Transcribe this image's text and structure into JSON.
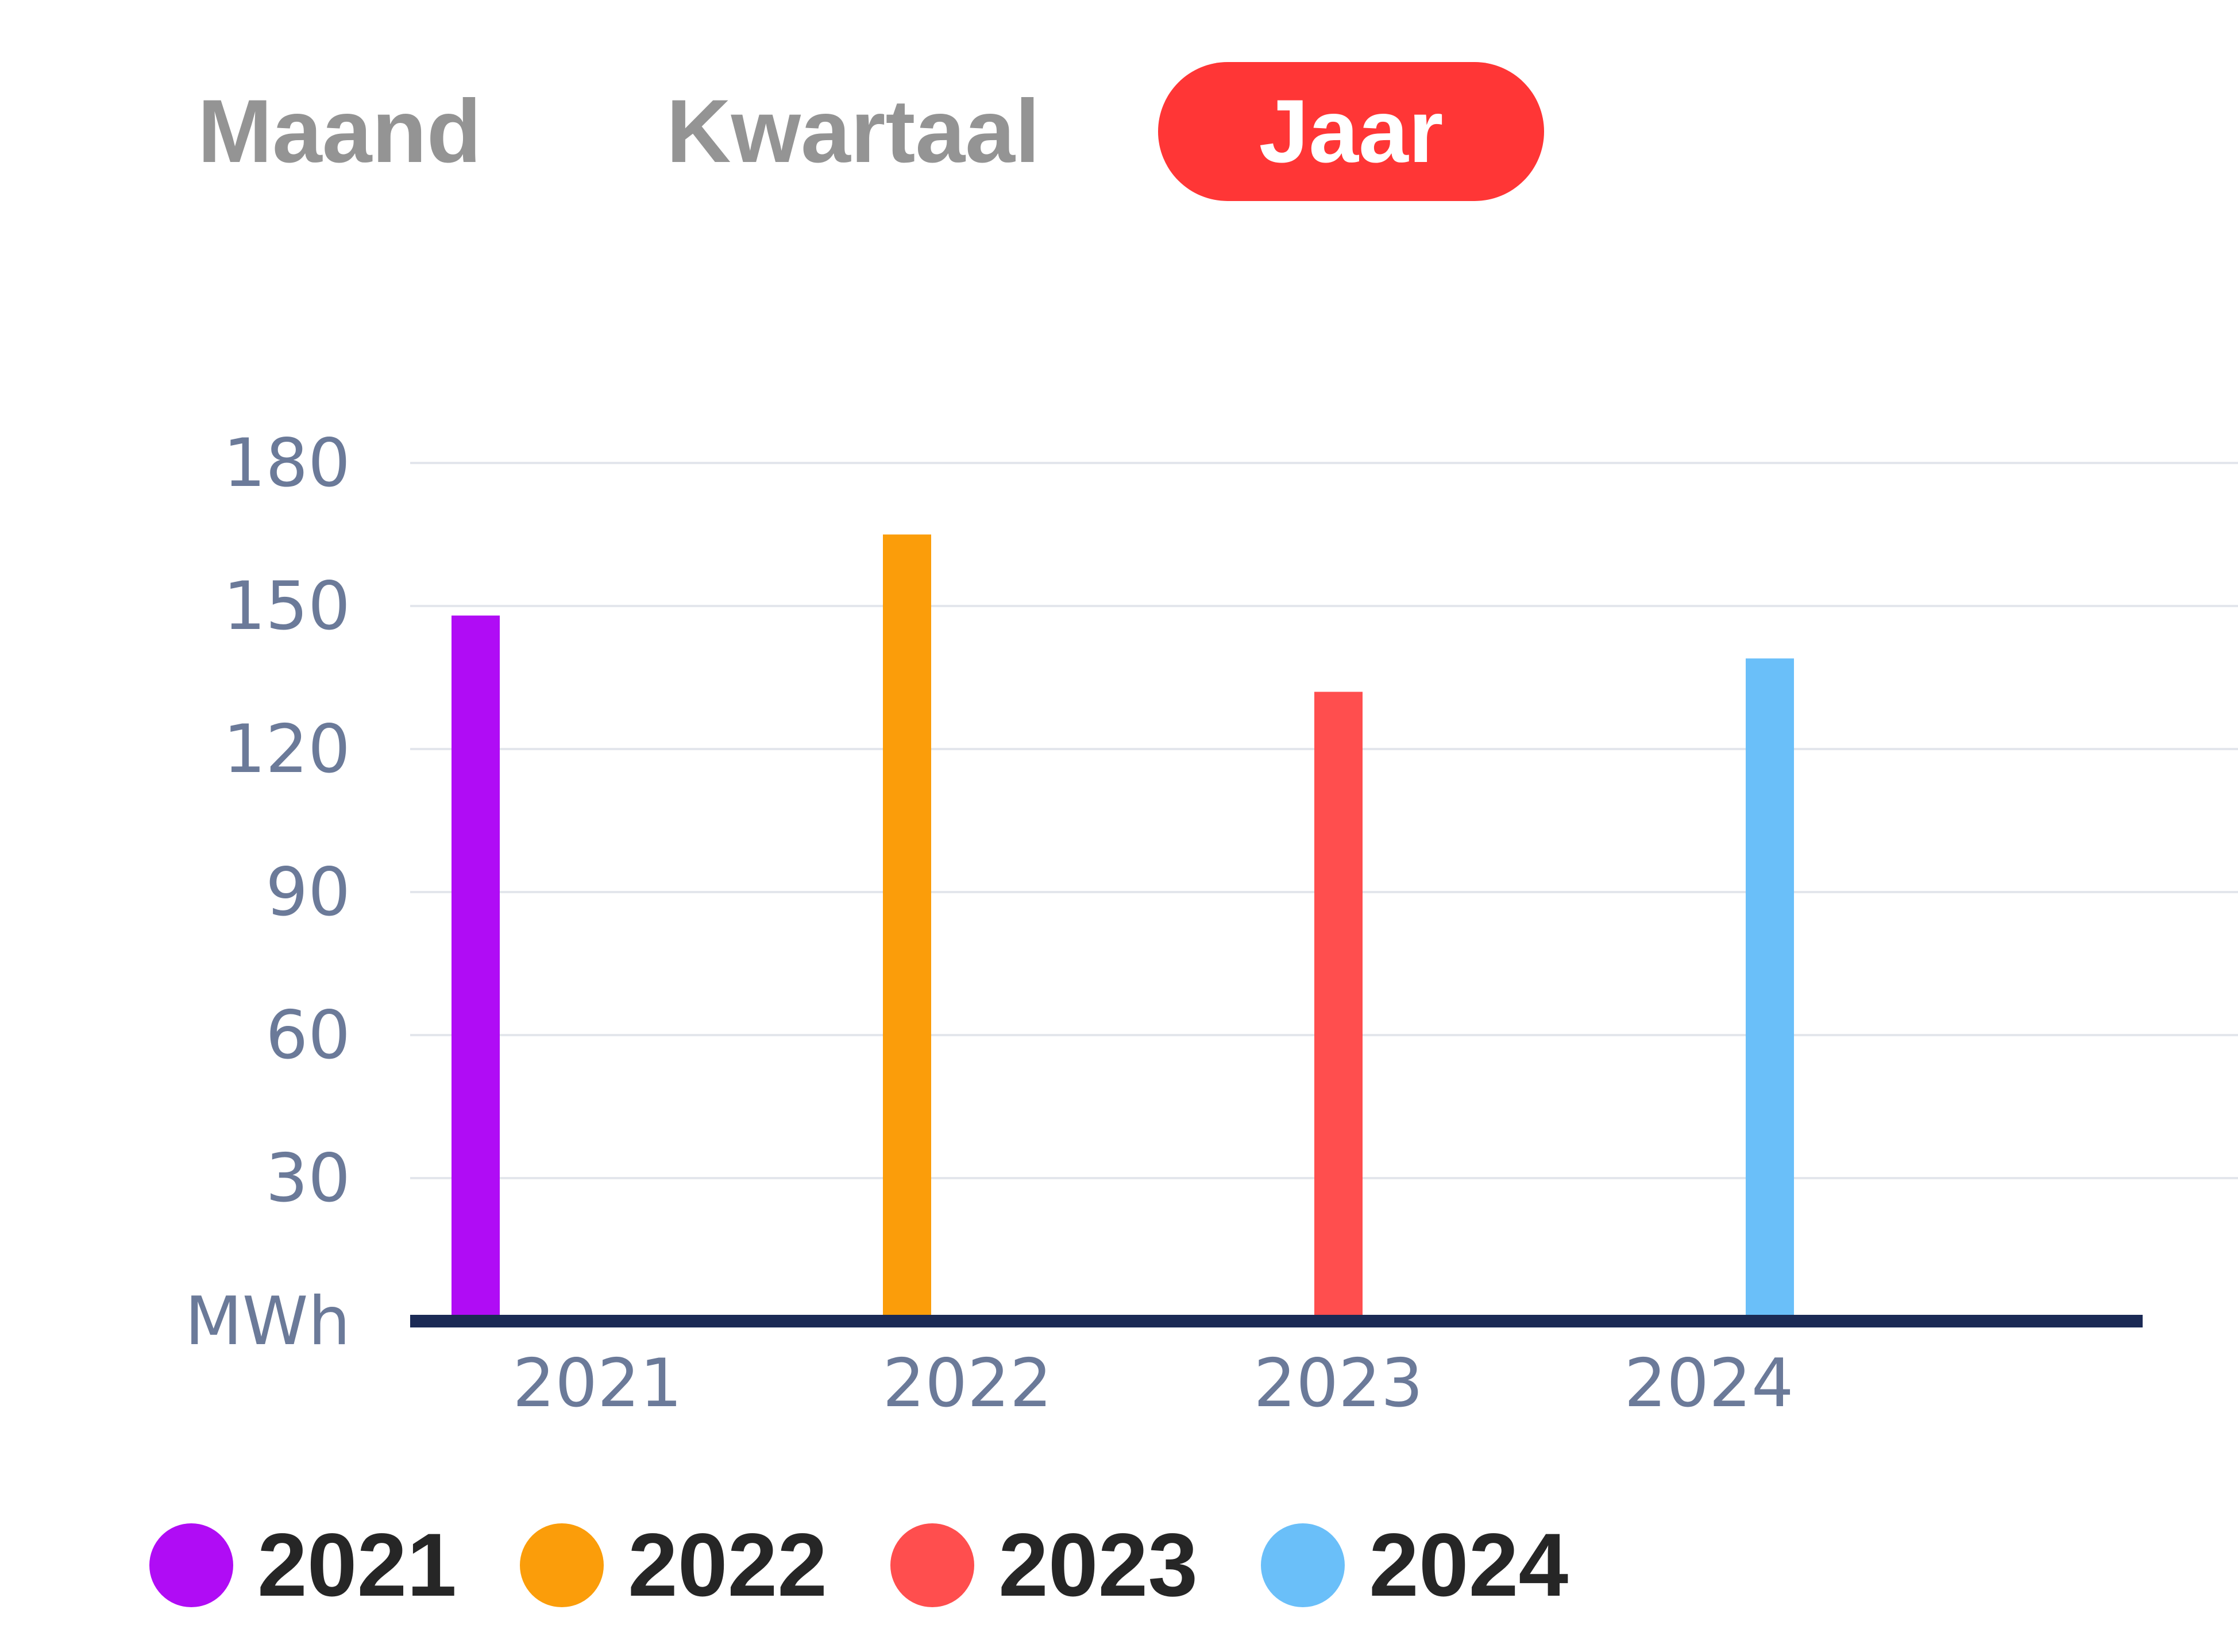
{
  "tabs": [
    {
      "label": "Maand",
      "active": false
    },
    {
      "label": "Kwartaal",
      "active": false
    },
    {
      "label": "Jaar",
      "active": true
    }
  ],
  "colors": {
    "active_tab": "#ff3636",
    "inactive_tab_text": "#949494",
    "axis_text": "#6b7a99",
    "baseline": "#1b2a55",
    "grid": "#e3e6ec"
  },
  "chart_data": {
    "type": "bar",
    "categories": [
      "2021",
      "2022",
      "2023",
      "2024"
    ],
    "values": [
      148,
      165,
      132,
      139
    ],
    "bar_colors": [
      "#b00cf5",
      "#fb9d0a",
      "#ff4e4e",
      "#6abff9"
    ],
    "ylabel": "MWh",
    "ylim": [
      0,
      180
    ],
    "yticks": [
      0,
      30,
      60,
      90,
      120,
      150,
      180
    ],
    "y_zero_label": "MWh",
    "grid": true,
    "legend_position": "bottom-left"
  },
  "legend": [
    {
      "label": "2021",
      "color": "#b00cf5"
    },
    {
      "label": "2022",
      "color": "#fb9d0a"
    },
    {
      "label": "2023",
      "color": "#ff4e4e"
    },
    {
      "label": "2024",
      "color": "#6abff9"
    }
  ]
}
